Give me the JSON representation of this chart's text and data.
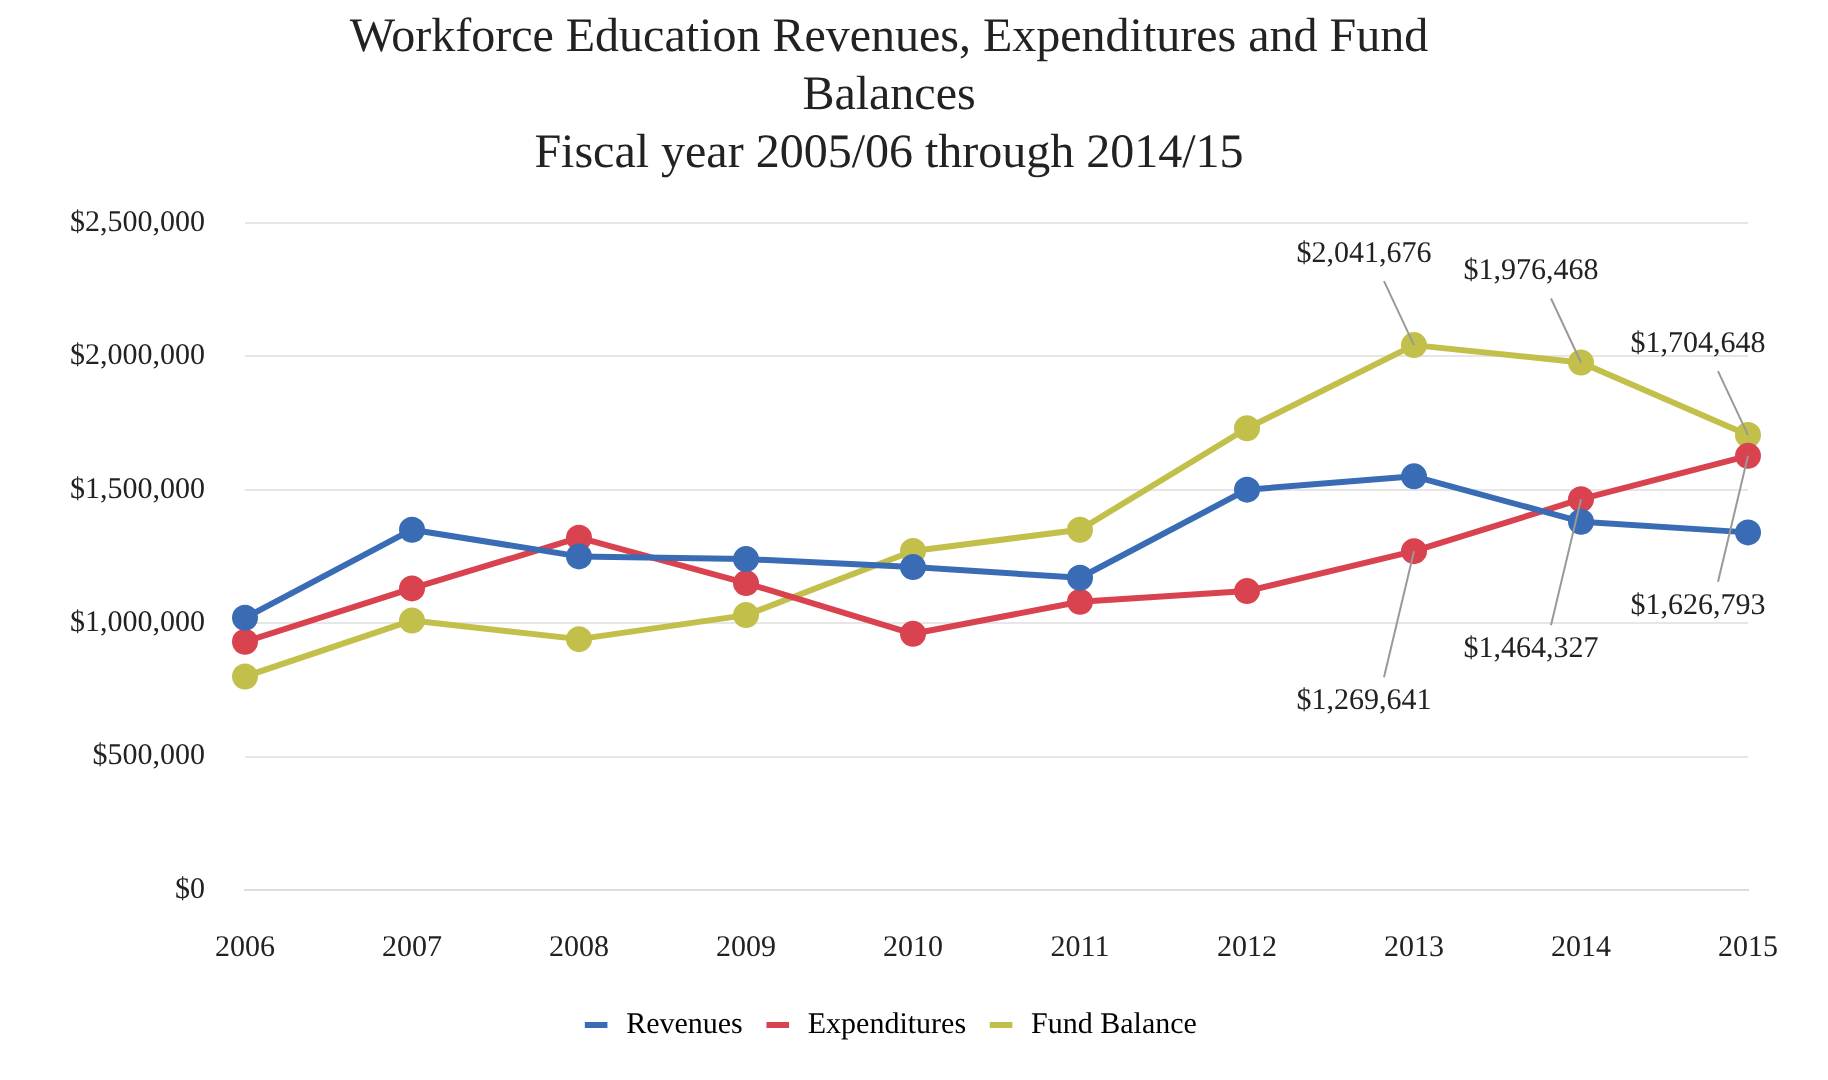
{
  "chart_data": {
    "type": "line",
    "title": "Workforce Education Revenues, Expenditures and Fund Balances",
    "subtitle": "Fiscal year 2005/06 through 2014/15",
    "categories": [
      "2006",
      "2007",
      "2008",
      "2009",
      "2010",
      "2011",
      "2012",
      "2013",
      "2014",
      "2015"
    ],
    "series": [
      {
        "name": "Revenues",
        "color": "#3a6cb5",
        "values": [
          1020000,
          1350000,
          1250000,
          1240000,
          1210000,
          1170000,
          1500000,
          1550000,
          1380000,
          1340000
        ]
      },
      {
        "name": "Expenditures",
        "color": "#d9424f",
        "values": [
          930000,
          1130000,
          1320000,
          1150000,
          960000,
          1080000,
          1120000,
          1269641,
          1464327,
          1626793
        ],
        "value_labels": [
          null,
          null,
          null,
          null,
          null,
          null,
          null,
          "$1,269,641",
          "$1,464,327",
          "$1,626,793"
        ]
      },
      {
        "name": "Fund Balance",
        "color": "#c2c04a",
        "values": [
          800000,
          1010000,
          940000,
          1030000,
          1270000,
          1350000,
          1730000,
          2041676,
          1976468,
          1704648
        ],
        "value_labels": [
          null,
          null,
          null,
          null,
          null,
          null,
          null,
          "$2,041,676",
          "$1,976,468",
          "$1,704,648"
        ]
      }
    ],
    "ylim": [
      0,
      2500000
    ],
    "yticks": [
      {
        "value": 0,
        "label": "$0"
      },
      {
        "value": 500000,
        "label": "$500,000"
      },
      {
        "value": 1000000,
        "label": "$1,000,000"
      },
      {
        "value": 1500000,
        "label": "$1,500,000"
      },
      {
        "value": 2000000,
        "label": "$2,000,000"
      },
      {
        "value": 2500000,
        "label": "$2,500,000"
      }
    ],
    "grid": "y",
    "legend": "bottom",
    "marker": "circle",
    "line_style": "solid"
  }
}
